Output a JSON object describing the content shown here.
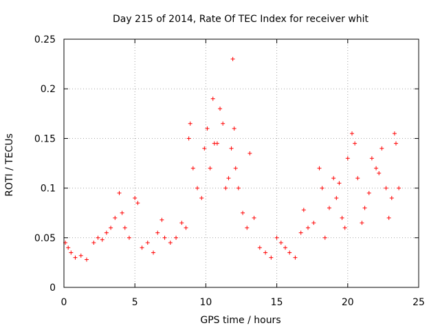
{
  "chart_data": {
    "type": "scatter",
    "title": "Day 215 of 2014, Rate Of TEC Index for receiver whit",
    "xlabel": "GPS time / hours",
    "ylabel": "ROTI / TECUs",
    "xlim": [
      0,
      25
    ],
    "ylim": [
      0,
      0.25
    ],
    "x_ticks": [
      0,
      5,
      10,
      15,
      20,
      25
    ],
    "x_tick_labels": [
      "0",
      "5",
      "10",
      "15",
      "20",
      "25"
    ],
    "y_ticks": [
      0,
      0.05,
      0.1,
      0.15,
      0.2,
      0.25
    ],
    "y_tick_labels": [
      "0",
      "0.05",
      "0.1",
      "0.15",
      "0.2",
      "0.25"
    ],
    "grid": true,
    "marker": "+",
    "color": "#ff0000",
    "series": [
      {
        "name": "ROTI",
        "x": [
          0.1,
          0.3,
          0.5,
          0.8,
          1.2,
          1.6,
          2.1,
          2.4,
          2.7,
          3.0,
          3.3,
          3.6,
          3.9,
          4.1,
          4.3,
          4.6,
          5.0,
          5.2,
          5.5,
          5.9,
          6.3,
          6.6,
          6.9,
          7.1,
          7.5,
          7.9,
          8.3,
          8.6,
          8.8,
          8.9,
          9.1,
          9.4,
          9.7,
          9.9,
          10.1,
          10.3,
          10.5,
          10.6,
          10.8,
          11.0,
          11.2,
          11.4,
          11.6,
          11.8,
          11.9,
          12.0,
          12.1,
          12.3,
          12.6,
          12.9,
          13.1,
          13.4,
          13.8,
          14.2,
          14.6,
          15.0,
          15.3,
          15.6,
          15.9,
          16.3,
          16.7,
          16.9,
          17.2,
          17.6,
          18.0,
          18.2,
          18.4,
          18.7,
          19.0,
          19.2,
          19.4,
          19.6,
          19.8,
          20.0,
          20.3,
          20.5,
          20.7,
          21.0,
          21.2,
          21.5,
          21.7,
          22.0,
          22.2,
          22.4,
          22.7,
          22.9,
          23.1,
          23.3,
          23.4,
          23.6
        ],
        "y": [
          0.045,
          0.04,
          0.035,
          0.03,
          0.032,
          0.028,
          0.045,
          0.05,
          0.048,
          0.055,
          0.06,
          0.07,
          0.095,
          0.075,
          0.06,
          0.05,
          0.09,
          0.085,
          0.04,
          0.045,
          0.035,
          0.055,
          0.068,
          0.05,
          0.045,
          0.05,
          0.065,
          0.06,
          0.15,
          0.165,
          0.12,
          0.1,
          0.09,
          0.14,
          0.16,
          0.12,
          0.19,
          0.145,
          0.145,
          0.18,
          0.165,
          0.1,
          0.11,
          0.14,
          0.23,
          0.16,
          0.12,
          0.1,
          0.075,
          0.06,
          0.135,
          0.07,
          0.04,
          0.035,
          0.03,
          0.05,
          0.045,
          0.04,
          0.035,
          0.03,
          0.055,
          0.078,
          0.06,
          0.065,
          0.12,
          0.1,
          0.05,
          0.08,
          0.11,
          0.09,
          0.105,
          0.07,
          0.06,
          0.13,
          0.155,
          0.145,
          0.11,
          0.065,
          0.08,
          0.095,
          0.13,
          0.12,
          0.115,
          0.14,
          0.1,
          0.07,
          0.09,
          0.155,
          0.145,
          0.1
        ]
      }
    ]
  }
}
